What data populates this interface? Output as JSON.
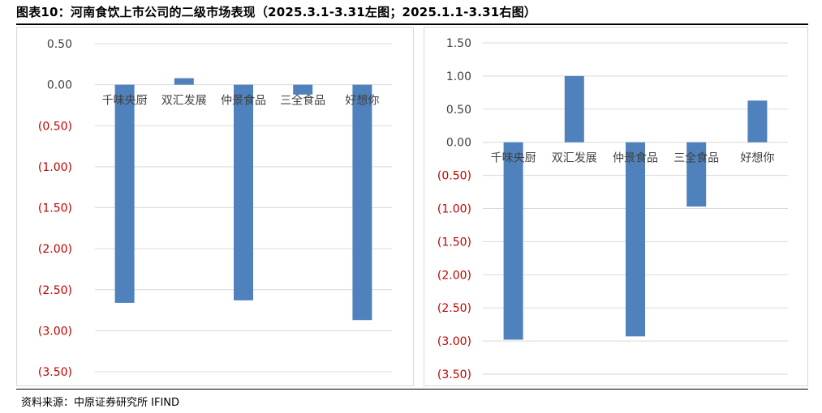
{
  "figure": {
    "title": "图表10：河南食饮上市公司的二级市场表现（2025.3.1-3.31左图；2025.1.1-3.31右图）",
    "source": "资料来源：中原证券研究所 IFIND"
  },
  "colors": {
    "bar": "#4f81bd",
    "negative_tick": "#c00000",
    "positive_tick": "#404040",
    "grid": "#d9d9d9"
  },
  "chart_data": [
    {
      "type": "bar",
      "categories": [
        "千味央厨",
        "双汇发展",
        "仲景食品",
        "三全食品",
        "好想你"
      ],
      "values": [
        -2.66,
        0.08,
        -2.63,
        -0.12,
        -2.87
      ],
      "ylim": [
        -3.5,
        0.5
      ],
      "yticks": [
        0.5,
        0,
        -0.5,
        -1,
        -1.5,
        -2,
        -2.5,
        -3,
        -3.5
      ],
      "ytick_labels": [
        "0.50",
        "0.00",
        "(0.50)",
        "(1.00)",
        "(1.50)",
        "(2.00)",
        "(2.50)",
        "(3.00)",
        "(3.50)"
      ],
      "grid": true,
      "legend": "none",
      "title": "",
      "xlabel": "",
      "ylabel": ""
    },
    {
      "type": "bar",
      "categories": [
        "千味央厨",
        "双汇发展",
        "仲景食品",
        "三全食品",
        "好想你"
      ],
      "values": [
        -2.98,
        1.0,
        -2.93,
        -0.97,
        0.63
      ],
      "ylim": [
        -3.5,
        1.5
      ],
      "yticks": [
        1.5,
        1,
        0.5,
        0,
        -0.5,
        -1,
        -1.5,
        -2,
        -2.5,
        -3,
        -3.5
      ],
      "ytick_labels": [
        "1.50",
        "1.00",
        "0.50",
        "0.00",
        "(0.50)",
        "(1.00)",
        "(1.50)",
        "(2.00)",
        "(2.50)",
        "(3.00)",
        "(3.50)"
      ],
      "grid": true,
      "legend": "none",
      "title": "",
      "xlabel": "",
      "ylabel": ""
    }
  ]
}
